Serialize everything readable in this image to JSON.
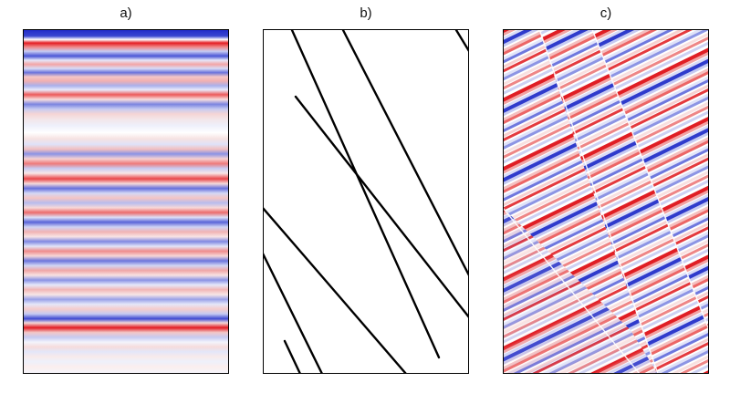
{
  "panels": [
    {
      "label": "a)",
      "kind": "horizontal-seismic-reflectors"
    },
    {
      "label": "b)",
      "kind": "fault-lines"
    },
    {
      "label": "c)",
      "kind": "faulted-seismic-reflectors"
    }
  ],
  "colors": {
    "positive": "#e0202a",
    "negative": "#2234c8",
    "background": "#ffffff",
    "fault_line": "#000000",
    "frame": "#000000"
  }
}
